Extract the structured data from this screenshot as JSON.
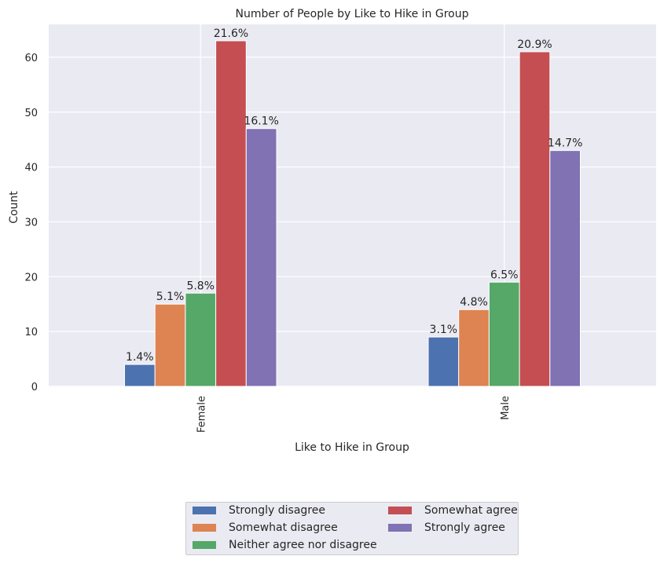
{
  "chart_data": {
    "type": "bar",
    "title": "Number of People by Like to Hike in Group",
    "xlabel": "Like to Hike in Group",
    "ylabel": "Count",
    "categories": [
      "Female",
      "Male"
    ],
    "ylim": [
      0,
      66
    ],
    "yticks": [
      0,
      10,
      20,
      30,
      40,
      50,
      60
    ],
    "grid": true,
    "legend_position": "bottom-center",
    "series": [
      {
        "name": "Strongly disagree",
        "color": "#4c72b0",
        "values": [
          4,
          9
        ],
        "labels": [
          "1.4%",
          "3.1%"
        ]
      },
      {
        "name": "Somewhat disagree",
        "color": "#dd8452",
        "values": [
          15,
          14
        ],
        "labels": [
          "5.1%",
          "4.8%"
        ]
      },
      {
        "name": "Neither agree nor disagree",
        "color": "#55a868",
        "values": [
          17,
          19
        ],
        "labels": [
          "5.8%",
          "6.5%"
        ]
      },
      {
        "name": "Somewhat agree",
        "color": "#c44e52",
        "values": [
          63,
          61
        ],
        "labels": [
          "21.6%",
          "20.9%"
        ]
      },
      {
        "name": "Strongly agree",
        "color": "#8172b3",
        "values": [
          47,
          43
        ],
        "labels": [
          "16.1%",
          "14.7%"
        ]
      }
    ]
  }
}
